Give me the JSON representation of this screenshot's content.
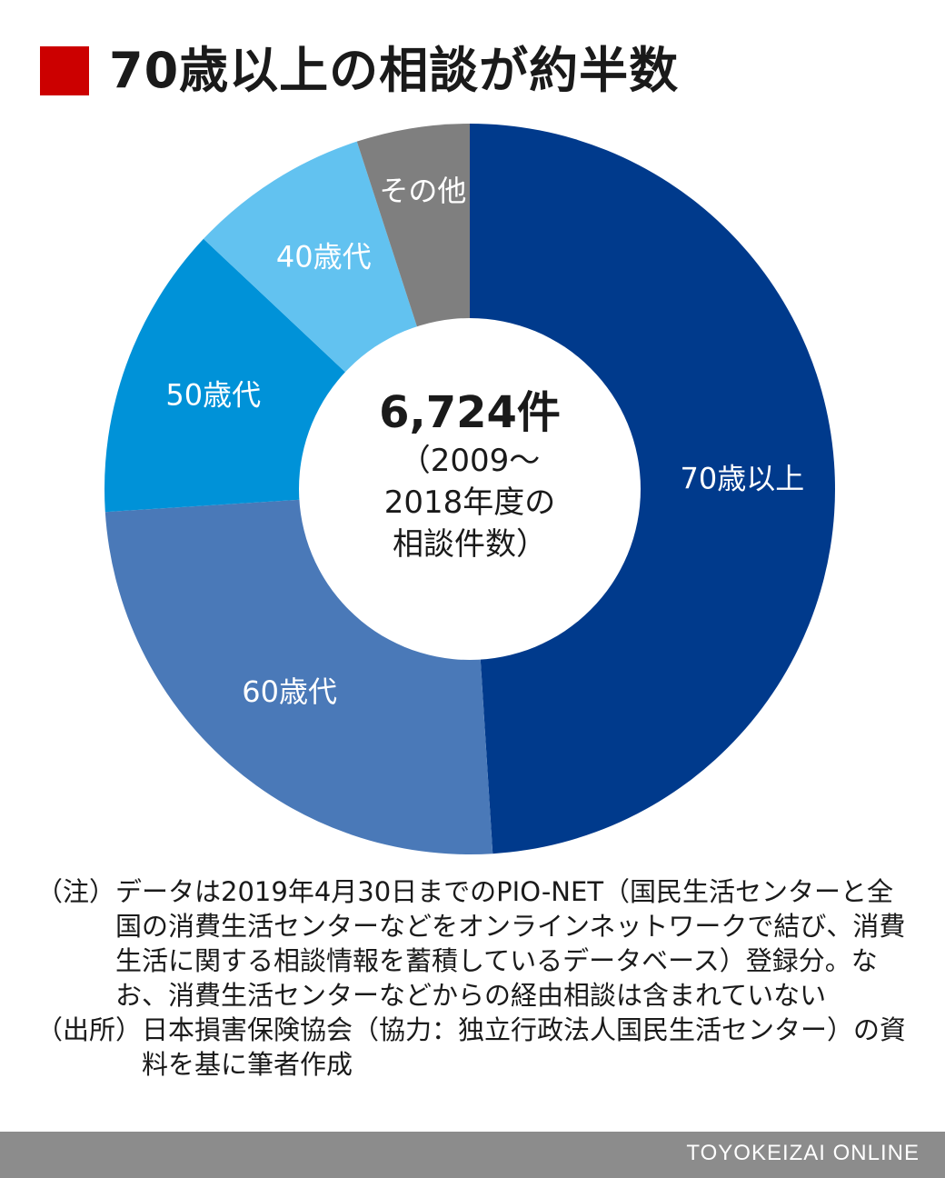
{
  "title": "70歳以上の相談が約半数",
  "accent_color": "#cc0000",
  "chart_data": {
    "type": "pie",
    "title": "70歳以上の相談が約半数",
    "slices": [
      {
        "label": "70歳以上",
        "value": 49,
        "color": "#003a8c",
        "text_color": "#ffffff"
      },
      {
        "label": "60歳代",
        "value": 25,
        "color": "#4a79b8",
        "text_color": "#ffffff"
      },
      {
        "label": "50歳代",
        "value": 13,
        "color": "#0092d8",
        "text_color": "#ffffff"
      },
      {
        "label": "40歳代",
        "value": 8,
        "color": "#62c2f0",
        "text_color": "#ffffff"
      },
      {
        "label": "その他",
        "value": 5,
        "color": "#7f7f7f",
        "text_color": "#ffffff"
      }
    ],
    "center": {
      "total": "6,724件",
      "lines": [
        "（2009～",
        "2018年度の",
        "相談件数）"
      ]
    }
  },
  "notes": [
    {
      "label": "（注）",
      "text": "データは2019年4月30日までのPIO-NET（国民生活センターと全国の消費生活センターなどをオンラインネットワークで結び、消費生活に関する相談情報を蓄積しているデータベース）登録分。なお、消費生活センターなどからの経由相談は含まれていない"
    },
    {
      "label": "（出所）",
      "text": "日本損害保険協会（協力：独立行政法人国民生活センター）の資料を基に筆者作成"
    }
  ],
  "footer": {
    "brand": "TOYOKEIZAI ONLINE"
  }
}
